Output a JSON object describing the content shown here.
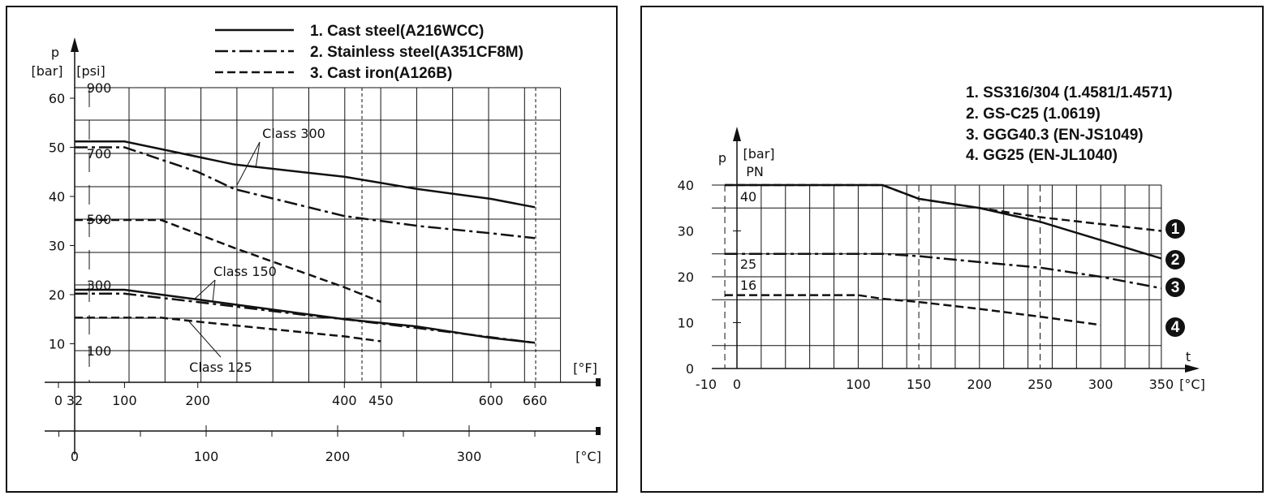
{
  "chart_data": [
    {
      "type": "line",
      "title": "",
      "ylabel_symbol": "p",
      "ylabel_bar": "[bar]",
      "ylabel_psi": "[psi]",
      "xlabel_f": "[°F]",
      "xlabel_c": "[°C]",
      "bar_ticks": [
        "10",
        "20",
        "30",
        "40",
        "50",
        "60"
      ],
      "psi_ticks": [
        "100",
        "300",
        "500",
        "700",
        "900"
      ],
      "f_ticks": [
        "0",
        "32",
        "100",
        "200",
        "400",
        "450",
        "600",
        "660"
      ],
      "c_ticks": [
        "0",
        "100",
        "200",
        "300"
      ],
      "ylim_bar": [
        0,
        60
      ],
      "xlim_f": [
        32,
        700
      ],
      "legend": [
        "1.  Cast steel(A216WCC)",
        "2.  Stainless steel(A351CF8M)",
        "3.  Cast iron(A126B)"
      ],
      "annotations": [
        "Class 300",
        "Class 150",
        "Class 125"
      ],
      "series": [
        {
          "name": "Cast steel Class 300",
          "style": "solid",
          "x": [
            32,
            100,
            250,
            400,
            500,
            600,
            660
          ],
          "y": [
            51.2,
            51.2,
            46.5,
            44,
            41.5,
            39.5,
            37.8
          ]
        },
        {
          "name": "Stainless steel Class 300",
          "style": "dashdot",
          "x": [
            32,
            100,
            200,
            250,
            400,
            500,
            600,
            660
          ],
          "y": [
            50,
            50,
            45,
            41.5,
            36,
            34,
            32.5,
            31.5
          ]
        },
        {
          "name": "Cast iron (upper)",
          "style": "dashed",
          "x": [
            32,
            150,
            250,
            400,
            450
          ],
          "y": [
            35.2,
            35.2,
            29.5,
            21.5,
            18.5
          ]
        },
        {
          "name": "Cast steel Class 150",
          "style": "solid",
          "x": [
            32,
            100,
            200,
            400,
            500,
            600,
            660
          ],
          "y": [
            21,
            21,
            19,
            15,
            13.5,
            11.2,
            10.2
          ]
        },
        {
          "name": "Stainless steel Class 150",
          "style": "dashdot",
          "x": [
            32,
            100,
            200,
            350,
            400,
            500,
            660
          ],
          "y": [
            20.2,
            20.2,
            18.5,
            15.8,
            15,
            13.2,
            10.2
          ]
        },
        {
          "name": "Cast iron Class 125",
          "style": "dashed",
          "x": [
            32,
            150,
            200,
            400,
            450
          ],
          "y": [
            15.3,
            15.3,
            14.5,
            11.5,
            10.5
          ]
        }
      ]
    },
    {
      "type": "line",
      "title": "",
      "ylabel_symbol": "p",
      "ylabel_unit": "[bar]",
      "ylabel_pn": "PN",
      "xlabel_symbol": "t",
      "xlabel_unit": "[°C]",
      "y_ticks": [
        "0",
        "10",
        "20",
        "30",
        "40"
      ],
      "x_ticks": [
        "-10",
        "0",
        "100",
        "150",
        "200",
        "250",
        "300",
        "350"
      ],
      "pn_labels": [
        "40",
        "25",
        "16"
      ],
      "ylim": [
        0,
        40
      ],
      "xlim": [
        -10,
        350
      ],
      "legend": [
        "1.  SS316/304 (1.4581/1.4571)",
        "2.  GS-C25 (1.0619)",
        "3.  GGG40.3 (EN-JS1049)",
        "4.  GG25 (EN-JL1040)"
      ],
      "badges": [
        "1",
        "2",
        "3",
        "4"
      ],
      "series": [
        {
          "name": "SS316/304",
          "style": "dashed",
          "x": [
            -10,
            120,
            150,
            200,
            250,
            350
          ],
          "y": [
            40,
            40,
            37,
            35,
            33,
            30
          ]
        },
        {
          "name": "GS-C25",
          "style": "solid",
          "x": [
            -10,
            120,
            150,
            200,
            250,
            300,
            350
          ],
          "y": [
            40,
            40,
            37,
            35,
            32,
            28,
            24
          ]
        },
        {
          "name": "GGG40.3",
          "style": "dashdot",
          "x": [
            -10,
            120,
            150,
            200,
            250,
            300,
            350
          ],
          "y": [
            25,
            25,
            24.5,
            23.2,
            22,
            20,
            17.5
          ]
        },
        {
          "name": "GG25",
          "style": "dashed",
          "x": [
            -10,
            100,
            120,
            150,
            200,
            250,
            300
          ],
          "y": [
            16,
            16,
            15.2,
            14.5,
            13,
            11.3,
            9.5
          ]
        }
      ]
    }
  ]
}
